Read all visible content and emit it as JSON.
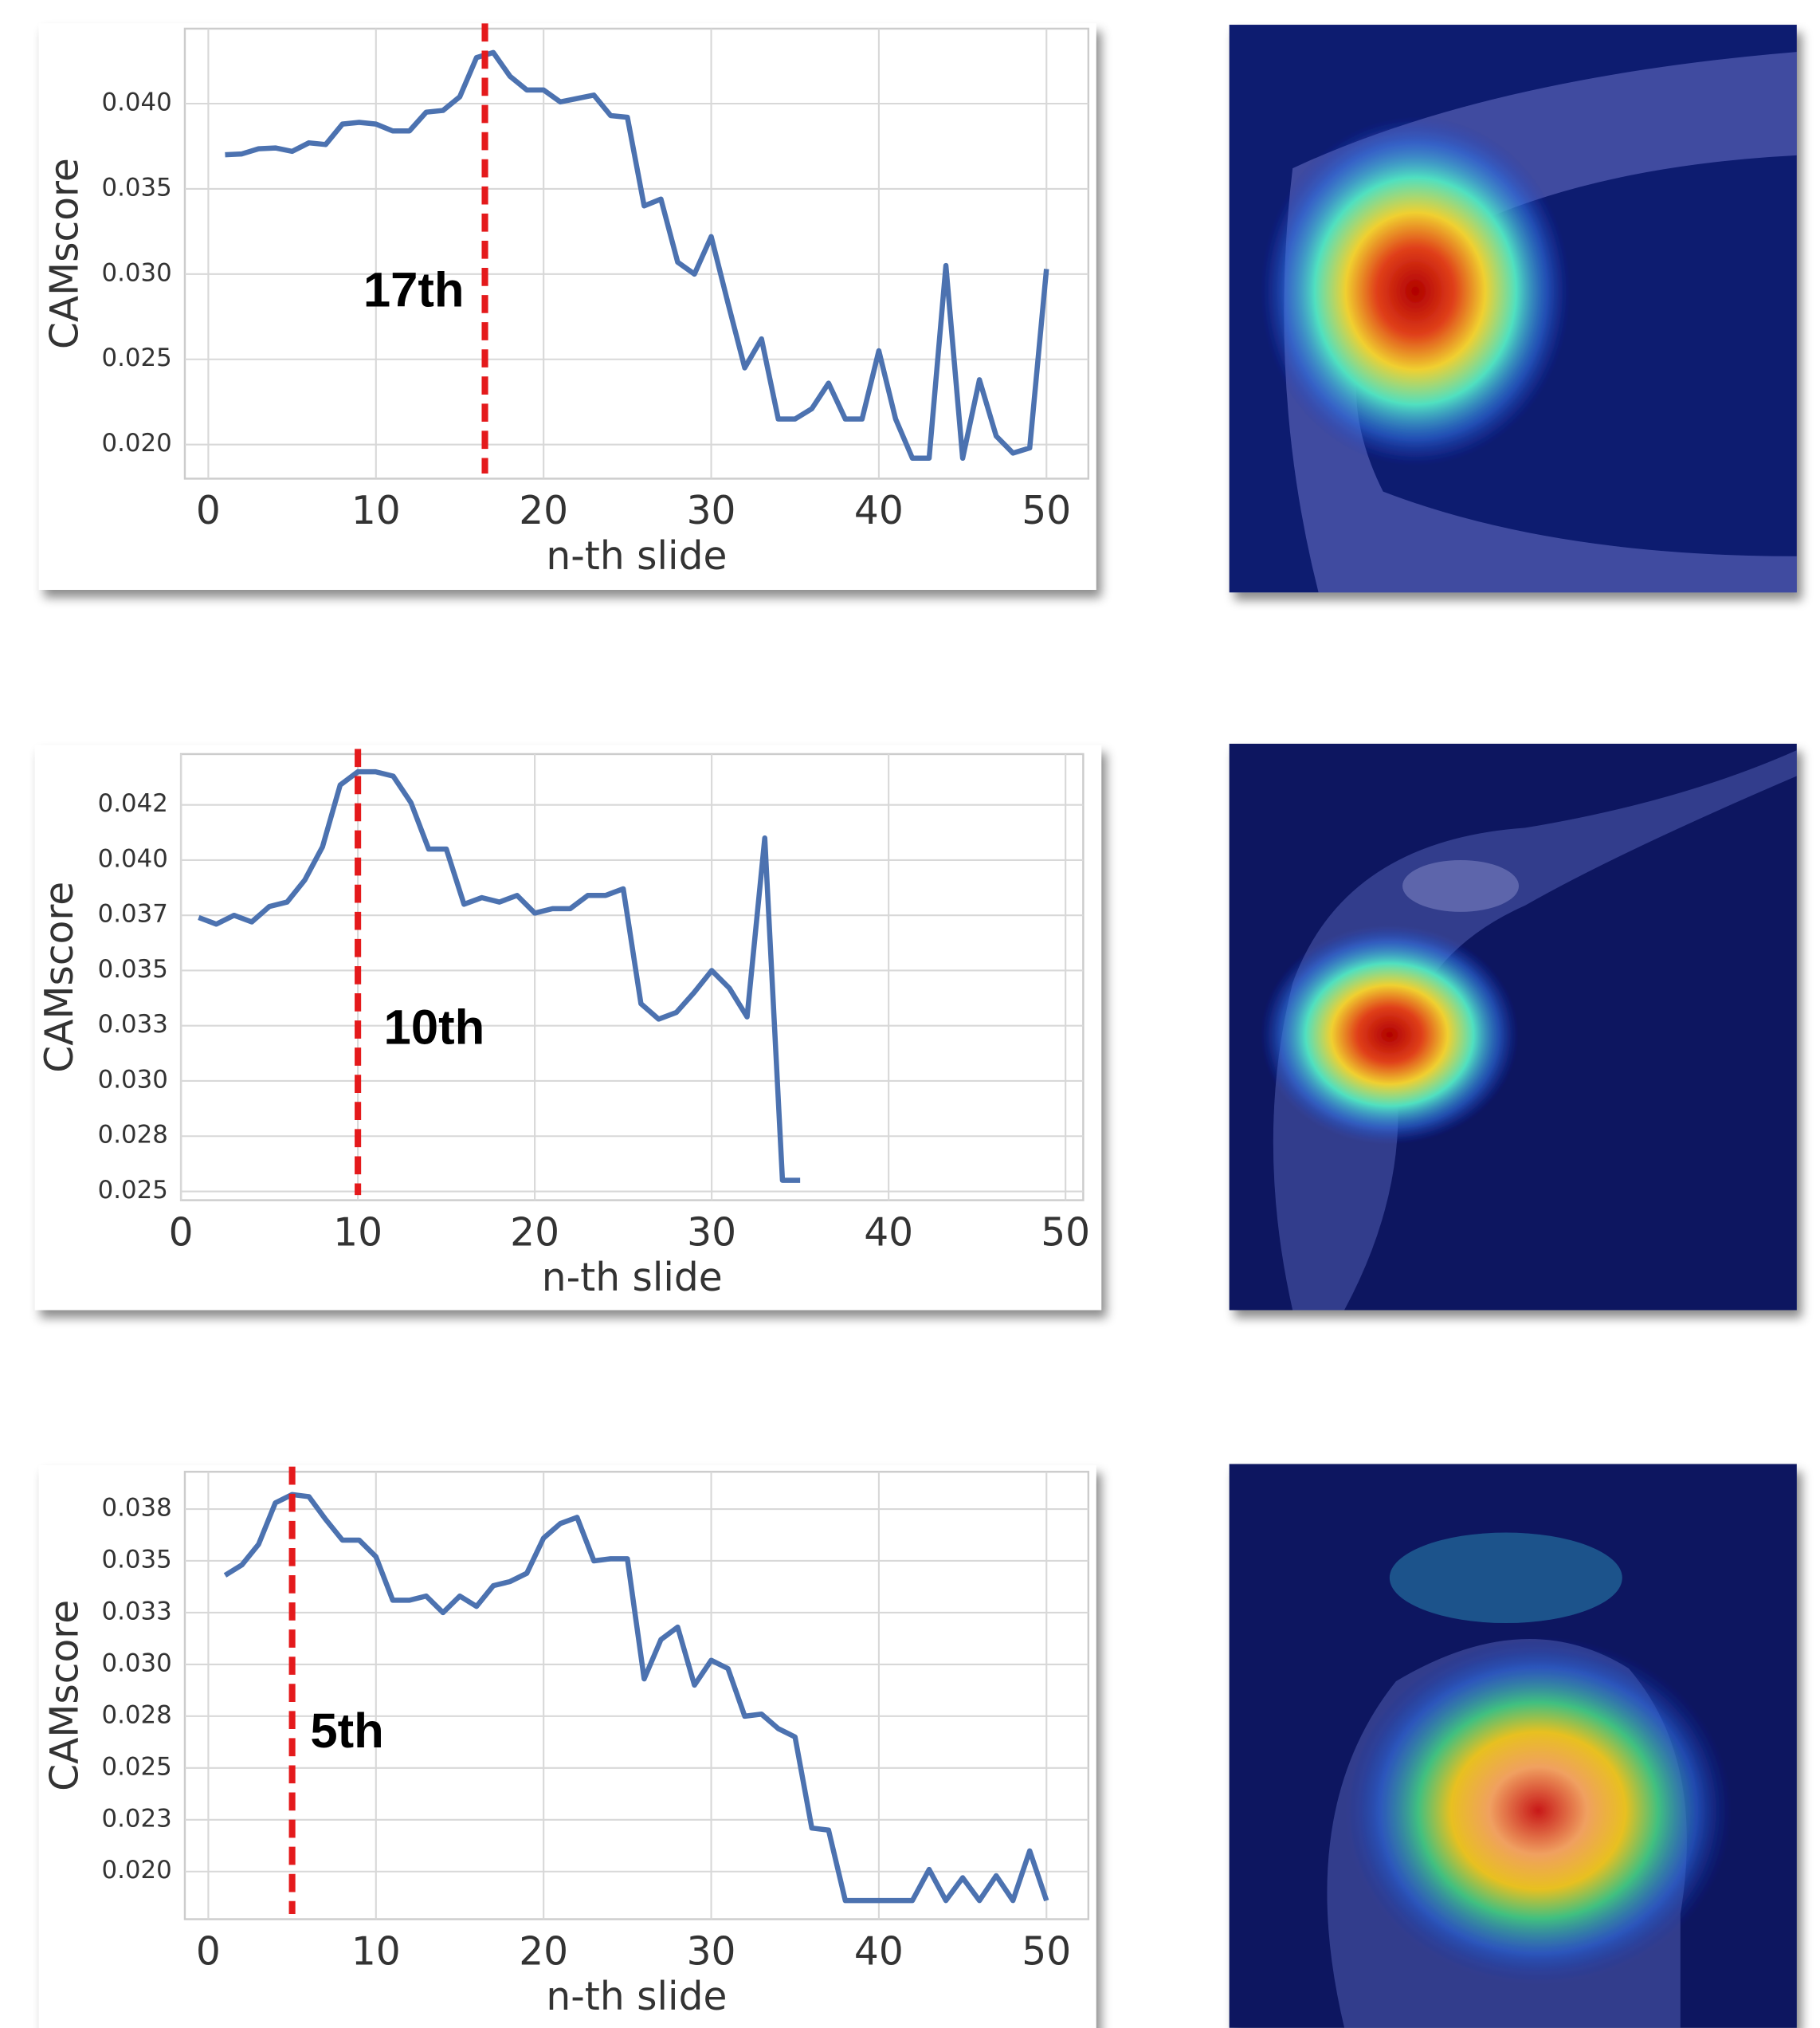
{
  "chart_data": [
    {
      "type": "line",
      "xlabel": "n-th slide",
      "ylabel": "CAMscore",
      "color": "#4c72b0",
      "x": [
        1,
        2,
        3,
        4,
        5,
        6,
        7,
        8,
        9,
        10,
        11,
        12,
        13,
        14,
        15,
        16,
        17,
        18,
        19,
        20,
        21,
        22,
        23,
        24,
        25,
        26,
        27,
        28,
        29,
        30,
        31,
        32,
        33,
        34,
        35,
        36,
        37,
        38,
        39,
        40,
        41,
        42,
        43,
        44,
        45,
        46,
        47,
        48,
        49,
        50
      ],
      "values": [
        0.037,
        0.03705,
        0.03735,
        0.0374,
        0.0372,
        0.0377,
        0.0376,
        0.0388,
        0.0389,
        0.0388,
        0.0384,
        0.0384,
        0.0395,
        0.0396,
        0.0404,
        0.0427,
        0.043,
        0.0416,
        0.0408,
        0.0408,
        0.0401,
        0.0403,
        0.0405,
        0.0393,
        0.0392,
        0.034,
        0.0344,
        0.0307,
        0.03,
        0.0322,
        0.0283,
        0.0245,
        0.0262,
        0.0215,
        0.0215,
        0.0221,
        0.0236,
        0.0215,
        0.0215,
        0.0255,
        0.0215,
        0.0192,
        0.0192,
        0.0305,
        0.0192,
        0.0238,
        0.0205,
        0.0195,
        0.0198,
        0.0303
      ],
      "xlim": [
        -1.4,
        52.5
      ],
      "ylim": [
        0.018,
        0.0444
      ],
      "xticks": [
        0,
        10,
        20,
        30,
        40,
        50
      ],
      "yticks": [
        {
          "value": 0.02,
          "label": "0.020"
        },
        0.025,
        {
          "value": 0.03,
          "label": "0.030"
        },
        0.035,
        {
          "value": 0.04,
          "label": "0.040"
        }
      ],
      "grid": true,
      "vline": {
        "x": 16.5,
        "color": "#e41a1c",
        "label": "17th"
      }
    },
    {
      "type": "line",
      "xlabel": "n-th slide",
      "ylabel": "CAMscore",
      "color": "#4c72b0",
      "x": [
        1,
        2,
        3,
        4,
        5,
        6,
        7,
        8,
        9,
        10,
        11,
        12,
        13,
        14,
        15,
        16,
        17,
        18,
        19,
        20,
        21,
        22,
        23,
        24,
        25,
        26,
        27,
        28,
        29,
        30,
        31,
        32,
        33,
        34,
        35
      ],
      "values": [
        0.0374,
        0.0371,
        0.0375,
        0.0372,
        0.0379,
        0.0381,
        0.0391,
        0.0406,
        0.0434,
        0.044,
        0.044,
        0.0438,
        0.0426,
        0.0405,
        0.0405,
        0.038,
        0.0383,
        0.0381,
        0.0384,
        0.0376,
        0.0378,
        0.0378,
        0.0384,
        0.0384,
        0.0387,
        0.0335,
        0.0328,
        0.0331,
        0.034,
        0.035,
        0.0342,
        0.0329,
        0.041,
        0.0255,
        0.0255
      ],
      "xlim": [
        0,
        51
      ],
      "ylim": [
        0.0246,
        0.0448
      ],
      "xticks": [
        0,
        10,
        20,
        30,
        40,
        50
      ],
      "yticks": [
        0.025,
        {
          "value": 0.0275,
          "label": "0.028"
        },
        {
          "value": 0.03,
          "label": "0.030"
        },
        {
          "value": 0.0325,
          "label": "0.033"
        },
        0.035,
        {
          "value": 0.0375,
          "label": "0.037"
        },
        {
          "value": 0.04,
          "label": "0.040"
        },
        {
          "value": 0.0425,
          "label": "0.042"
        }
      ],
      "grid": true,
      "vline": {
        "x": 10,
        "color": "#e41a1c",
        "label": "10th"
      }
    },
    {
      "type": "line",
      "xlabel": "n-th slide",
      "ylabel": "CAMscore",
      "color": "#4c72b0",
      "x": [
        1,
        2,
        3,
        4,
        5,
        6,
        7,
        8,
        9,
        10,
        11,
        12,
        13,
        14,
        15,
        16,
        17,
        18,
        19,
        20,
        21,
        22,
        23,
        24,
        25,
        26,
        27,
        28,
        29,
        30,
        31,
        32,
        33,
        34,
        35,
        36,
        37,
        38,
        39,
        40,
        41,
        42,
        43,
        44,
        45,
        46,
        47,
        48,
        49,
        50
      ],
      "values": [
        0.0343,
        0.0348,
        0.0358,
        0.0378,
        0.0382,
        0.0381,
        0.037,
        0.036,
        0.036,
        0.0352,
        0.0331,
        0.0331,
        0.0333,
        0.0325,
        0.0333,
        0.0328,
        0.0338,
        0.034,
        0.0344,
        0.0361,
        0.0368,
        0.0371,
        0.035,
        0.0351,
        0.0351,
        0.0293,
        0.0312,
        0.0318,
        0.029,
        0.0302,
        0.0298,
        0.0275,
        0.0276,
        0.0269,
        0.0265,
        0.0221,
        0.022,
        0.0186,
        0.0186,
        0.0186,
        0.0186,
        0.0186,
        0.0201,
        0.0186,
        0.0197,
        0.0186,
        0.0198,
        0.0186,
        0.021,
        0.0186
      ],
      "xlim": [
        -1.4,
        52.5
      ],
      "ylim": [
        0.0177,
        0.0393
      ],
      "xticks": [
        0,
        10,
        20,
        30,
        40,
        50
      ],
      "yticks": [
        {
          "value": 0.02,
          "label": "0.020"
        },
        {
          "value": 0.0225,
          "label": "0.023"
        },
        0.025,
        {
          "value": 0.0275,
          "label": "0.028"
        },
        {
          "value": 0.03,
          "label": "0.030"
        },
        {
          "value": 0.0325,
          "label": "0.033"
        },
        0.035,
        {
          "value": 0.0375,
          "label": "0.038"
        }
      ],
      "grid": true,
      "vline": {
        "x": 5,
        "color": "#e41a1c",
        "label": "5th"
      }
    }
  ]
}
